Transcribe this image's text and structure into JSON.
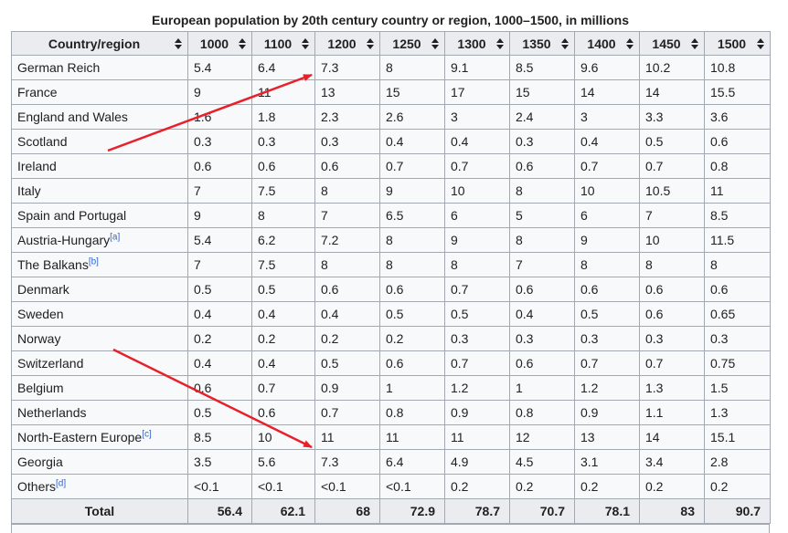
{
  "caption": "European population by 20th century country or region, 1000–1500, in millions",
  "headers": [
    "Country/region",
    "1000",
    "1100",
    "1200",
    "1250",
    "1300",
    "1350",
    "1400",
    "1450",
    "1500"
  ],
  "rows": [
    {
      "name": "German Reich",
      "ref": "",
      "values": [
        "5.4",
        "6.4",
        "7.3",
        "8",
        "9.1",
        "8.5",
        "9.6",
        "10.2",
        "10.8"
      ]
    },
    {
      "name": "France",
      "ref": "",
      "values": [
        "9",
        "11",
        "13",
        "15",
        "17",
        "15",
        "14",
        "14",
        "15.5"
      ]
    },
    {
      "name": "England and Wales",
      "ref": "",
      "values": [
        "1.6",
        "1.8",
        "2.3",
        "2.6",
        "3",
        "2.4",
        "3",
        "3.3",
        "3.6"
      ]
    },
    {
      "name": "Scotland",
      "ref": "",
      "values": [
        "0.3",
        "0.3",
        "0.3",
        "0.4",
        "0.4",
        "0.3",
        "0.4",
        "0.5",
        "0.6"
      ]
    },
    {
      "name": "Ireland",
      "ref": "",
      "values": [
        "0.6",
        "0.6",
        "0.6",
        "0.7",
        "0.7",
        "0.6",
        "0.7",
        "0.7",
        "0.8"
      ]
    },
    {
      "name": "Italy",
      "ref": "",
      "values": [
        "7",
        "7.5",
        "8",
        "9",
        "10",
        "8",
        "10",
        "10.5",
        "11"
      ]
    },
    {
      "name": "Spain and Portugal",
      "ref": "",
      "values": [
        "9",
        "8",
        "7",
        "6.5",
        "6",
        "5",
        "6",
        "7",
        "8.5"
      ]
    },
    {
      "name": "Austria-Hungary",
      "ref": "[a]",
      "values": [
        "5.4",
        "6.2",
        "7.2",
        "8",
        "9",
        "8",
        "9",
        "10",
        "11.5"
      ]
    },
    {
      "name": "The Balkans",
      "ref": "[b]",
      "values": [
        "7",
        "7.5",
        "8",
        "8",
        "8",
        "7",
        "8",
        "8",
        "8"
      ]
    },
    {
      "name": "Denmark",
      "ref": "",
      "values": [
        "0.5",
        "0.5",
        "0.6",
        "0.6",
        "0.7",
        "0.6",
        "0.6",
        "0.6",
        "0.6"
      ]
    },
    {
      "name": "Sweden",
      "ref": "",
      "values": [
        "0.4",
        "0.4",
        "0.4",
        "0.5",
        "0.5",
        "0.4",
        "0.5",
        "0.6",
        "0.65"
      ]
    },
    {
      "name": "Norway",
      "ref": "",
      "values": [
        "0.2",
        "0.2",
        "0.2",
        "0.2",
        "0.3",
        "0.3",
        "0.3",
        "0.3",
        "0.3"
      ]
    },
    {
      "name": "Switzerland",
      "ref": "",
      "values": [
        "0.4",
        "0.4",
        "0.5",
        "0.6",
        "0.7",
        "0.6",
        "0.7",
        "0.7",
        "0.75"
      ]
    },
    {
      "name": "Belgium",
      "ref": "",
      "values": [
        "0.6",
        "0.7",
        "0.9",
        "1",
        "1.2",
        "1",
        "1.2",
        "1.3",
        "1.5"
      ]
    },
    {
      "name": "Netherlands",
      "ref": "",
      "values": [
        "0.5",
        "0.6",
        "0.7",
        "0.8",
        "0.9",
        "0.8",
        "0.9",
        "1.1",
        "1.3"
      ]
    },
    {
      "name": "North-Eastern Europe",
      "ref": "[c]",
      "values": [
        "8.5",
        "10",
        "11",
        "11",
        "11",
        "12",
        "13",
        "14",
        "15.1"
      ]
    },
    {
      "name": "Georgia",
      "ref": "",
      "values": [
        "3.5",
        "5.6",
        "7.3",
        "6.4",
        "4.9",
        "4.5",
        "3.1",
        "3.4",
        "2.8"
      ]
    },
    {
      "name": "Others",
      "ref": "[d]",
      "values": [
        "<0.1",
        "<0.1",
        "<0.1",
        "<0.1",
        "0.2",
        "0.2",
        "0.2",
        "0.2",
        "0.2"
      ]
    }
  ],
  "totals": {
    "label": "Total",
    "values": [
      "56.4",
      "62.1",
      "68",
      "72.9",
      "78.7",
      "70.7",
      "78.1",
      "83",
      "90.7"
    ]
  },
  "colors": {
    "arrow": "#e8202a",
    "header_bg": "#eaecf0",
    "cell_bg": "#f8f9fa",
    "border": "#a2a9b1"
  }
}
